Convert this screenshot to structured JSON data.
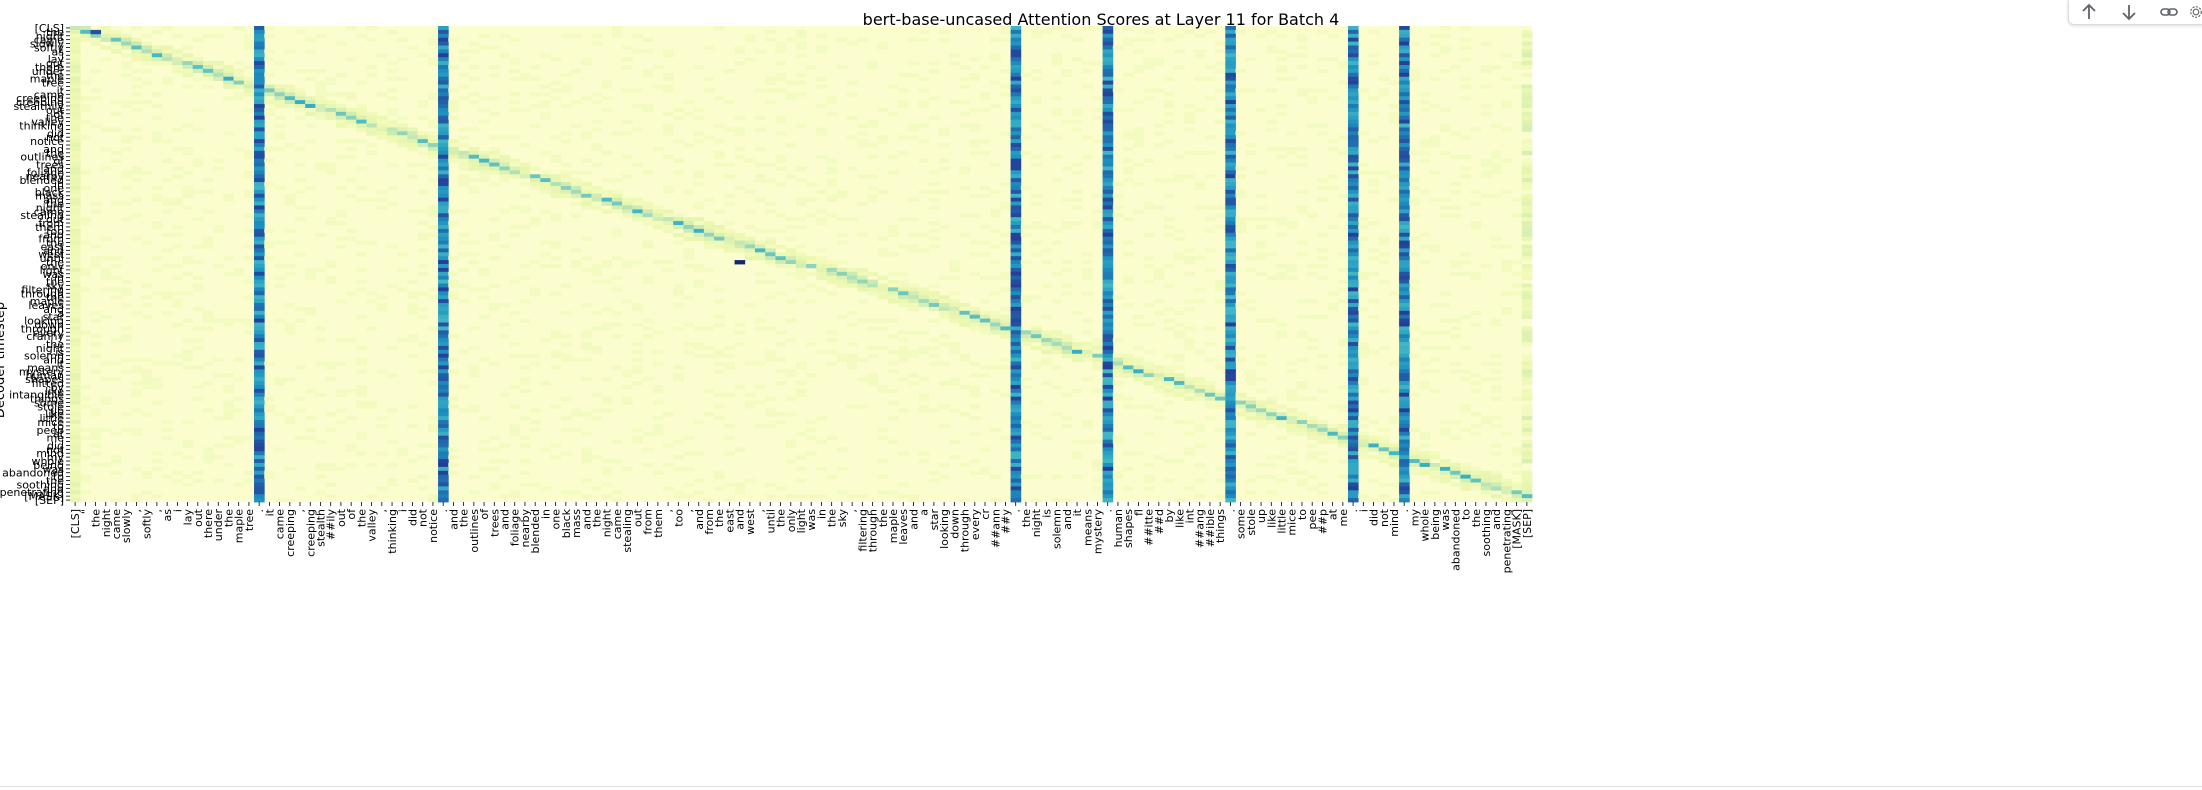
{
  "chart_data": {
    "type": "heatmap",
    "title": "bert-base-uncased Attention Scores at Layer 11 for Batch 4",
    "ylabel": "Decoder timestep",
    "xlabel": "",
    "x_tokens": [
      "[CLS]",
      "\"",
      "the",
      "night",
      "came",
      "slowly",
      ",",
      "softly",
      ",",
      "as",
      "i",
      "lay",
      "out",
      "there",
      "under",
      "the",
      "maple",
      "tree",
      ".",
      "it",
      "came",
      "creeping",
      ",",
      "creeping",
      "stealth",
      "##ily",
      "out",
      "of",
      "the",
      "valley",
      ",",
      "thinking",
      "i",
      "did",
      "not",
      "notice",
      ".",
      "and",
      "the",
      "outlines",
      "of",
      "trees",
      "and",
      "foliage",
      "nearby",
      "blended",
      "in",
      "one",
      "black",
      "mass",
      "and",
      "the",
      "night",
      "came",
      "stealing",
      "out",
      "from",
      "them",
      ",",
      "too",
      ",",
      "and",
      "from",
      "the",
      "east",
      "and",
      "west",
      ",",
      "until",
      "the",
      "only",
      "light",
      "was",
      "in",
      "the",
      "sky",
      ",",
      "filtering",
      "through",
      "the",
      "maple",
      "leaves",
      "and",
      "a",
      "star",
      "looking",
      "down",
      "through",
      "every",
      "cr",
      "##ann",
      "##y",
      ".",
      "the",
      "night",
      "is",
      "solemn",
      "and",
      "it",
      "means",
      "mystery",
      ".",
      "human",
      "shapes",
      "fl",
      "##itte",
      "##d",
      "by",
      "like",
      "int",
      "##ang",
      "##ible",
      "things",
      ".",
      "some",
      "stole",
      "up",
      "like",
      "little",
      "mice",
      "to",
      "pee",
      "##p",
      "at",
      "me",
      ".",
      "i",
      "did",
      "not",
      "mind",
      ".",
      "my",
      "whole",
      "being",
      "was",
      "abandoned",
      "to",
      "the",
      "soothing",
      "and",
      "penetrating",
      "[MASK]",
      "[SEP]"
    ],
    "y_tokens": [
      "[CLS]",
      "the",
      "night",
      "came",
      "slowly",
      "softly",
      "as",
      "i",
      "lay",
      "out",
      "there",
      "under",
      "the",
      "maple",
      "tree",
      ".",
      "it",
      "came",
      "creeping",
      "creeping",
      "stealthily",
      "out",
      "of",
      "the",
      "valley",
      "thinking",
      "i",
      "did",
      "not",
      "notice",
      ".",
      "and",
      "the",
      "outlines",
      "of",
      "trees",
      "and",
      "foliage",
      "nearby",
      "blended",
      "in",
      "one",
      "black",
      "mass",
      "and",
      "the",
      "night",
      "came",
      "stealing",
      "out",
      "from",
      "them",
      "too",
      "and",
      "from",
      "the",
      "east",
      "and",
      "west",
      "until",
      "the",
      "only",
      "light",
      "was",
      "in",
      "the",
      "sky",
      "filtering",
      "through",
      "the",
      "maple",
      "leaves",
      "and",
      "a",
      "star",
      "looking",
      "down",
      "through",
      "every",
      "cranny",
      ".",
      "the",
      "night",
      "is",
      "solemn",
      "and",
      "it",
      "means",
      "mystery",
      "human",
      "shapes",
      "flitted",
      "by",
      "like",
      "intangible",
      "things",
      "some",
      "stole",
      "up",
      "like",
      "little",
      "mice",
      "to",
      "peep",
      "at",
      "me",
      "i",
      "did",
      "not",
      "mind",
      "my",
      "whole",
      "being",
      "was",
      "abandoned",
      "to",
      "the",
      "soothing",
      "and",
      "penetrating",
      "[MASK]",
      "[SEP]"
    ],
    "colormap": "YlGnBu",
    "value_range": [
      0,
      1
    ],
    "strong_columns": [
      ".",
      ".",
      ".",
      "."
    ],
    "notes_pattern": "diagonal dominant attention with strong columns on sentence-ending periods"
  },
  "toolbar": {
    "up_icon": "arrow-up-icon",
    "down_icon": "arrow-down-icon",
    "link_icon": "link-icon",
    "settings_icon": "gear-icon"
  },
  "colors": {
    "low": "#ffffd9",
    "mid": "#c7e9b4",
    "mid2": "#41b6c4",
    "high": "#225ea8",
    "max": "#081d58"
  }
}
